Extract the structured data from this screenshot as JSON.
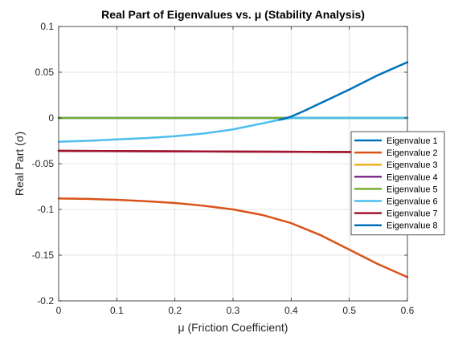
{
  "chart_data": {
    "type": "line",
    "title": "Real Part of Eigenvalues vs. μ (Stability Analysis)",
    "xlabel": "μ (Friction Coefficient)",
    "ylabel": "Real Part (σ)",
    "xlim": [
      0,
      0.6
    ],
    "ylim": [
      -0.2,
      0.1
    ],
    "xticks": [
      0,
      0.1,
      0.2,
      0.3,
      0.4,
      0.5,
      0.6
    ],
    "xtick_labels": [
      "0",
      "0.1",
      "0.2",
      "0.3",
      "0.4",
      "0.5",
      "0.6"
    ],
    "yticks": [
      -0.2,
      -0.15,
      -0.1,
      -0.05,
      0,
      0.05,
      0.1
    ],
    "ytick_labels": [
      "-0.2",
      "-0.15",
      "-0.1",
      "-0.05",
      "0",
      "0.05",
      "0.1"
    ],
    "grid": true,
    "legend_position": "right",
    "series": [
      {
        "name": "Eigenvalue 1",
        "color": "#0072BD",
        "x": [
          0,
          0.6
        ],
        "y": [
          0,
          0
        ]
      },
      {
        "name": "Eigenvalue 2",
        "color": "#D95319",
        "x": [
          0,
          0.05,
          0.1,
          0.15,
          0.2,
          0.25,
          0.3,
          0.35,
          0.4,
          0.45,
          0.5,
          0.55,
          0.6
        ],
        "y": [
          -0.088,
          -0.0885,
          -0.0895,
          -0.091,
          -0.093,
          -0.096,
          -0.1,
          -0.106,
          -0.115,
          -0.128,
          -0.144,
          -0.16,
          -0.174
        ]
      },
      {
        "name": "Eigenvalue 3",
        "color": "#EDB120",
        "x": [
          0,
          0.6
        ],
        "y": [
          -0.036,
          -0.0375
        ]
      },
      {
        "name": "Eigenvalue 4",
        "color": "#7E2F8E",
        "x": [
          0,
          0.6
        ],
        "y": [
          -0.036,
          -0.0375
        ]
      },
      {
        "name": "Eigenvalue 5",
        "color": "#77AC30",
        "x": [
          0,
          0.6
        ],
        "y": [
          0,
          0
        ]
      },
      {
        "name": "Eigenvalue 6",
        "color": "#4DBEEE",
        "x": [
          0,
          0.05,
          0.1,
          0.15,
          0.2,
          0.25,
          0.3,
          0.35,
          0.38,
          0.4,
          0.6
        ],
        "y": [
          -0.026,
          -0.025,
          -0.0235,
          -0.022,
          -0.02,
          -0.017,
          -0.0125,
          -0.006,
          -0.002,
          0,
          0
        ]
      },
      {
        "name": "Eigenvalue 7",
        "color": "#A2142F",
        "x": [
          0,
          0.6
        ],
        "y": [
          -0.036,
          -0.0375
        ]
      },
      {
        "name": "Eigenvalue 8",
        "color": "#0072BD",
        "x": [
          0.38,
          0.4,
          0.42,
          0.45,
          0.5,
          0.55,
          0.6
        ],
        "y": [
          -0.002,
          0.0015,
          0.007,
          0.016,
          0.031,
          0.047,
          0.061
        ]
      }
    ]
  }
}
